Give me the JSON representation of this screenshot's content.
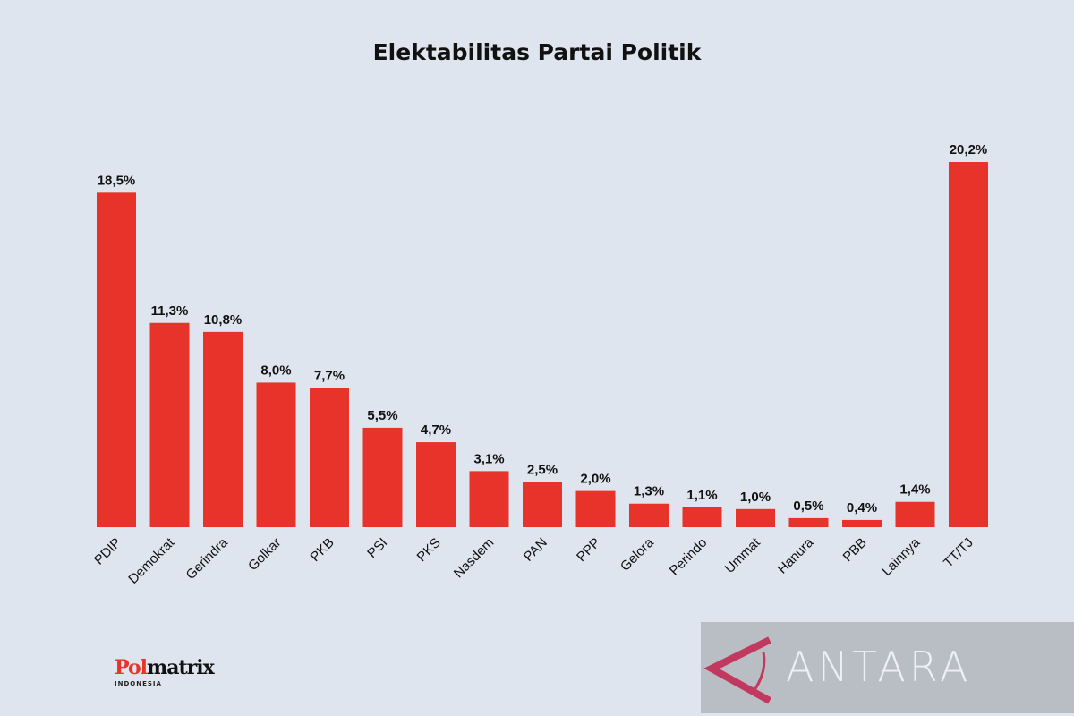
{
  "chart_data": {
    "type": "bar",
    "title": "Elektabilitas Partai Politik",
    "categories": [
      "PDIP",
      "Demokrat",
      "Gerindra",
      "Golkar",
      "PKB",
      "PSI",
      "PKS",
      "Nasdem",
      "PAN",
      "PPP",
      "Gelora",
      "Perindo",
      "Ummat",
      "Hanura",
      "PBB",
      "Lainnya",
      "TT/TJ"
    ],
    "values": [
      18.5,
      11.3,
      10.8,
      8.0,
      7.7,
      5.5,
      4.7,
      3.1,
      2.5,
      2.0,
      1.3,
      1.1,
      1.0,
      0.5,
      0.4,
      1.4,
      20.2
    ],
    "data_labels": [
      "18,5%",
      "11,3%",
      "10,8%",
      "8,0%",
      "7,7%",
      "5,5%",
      "4,7%",
      "3,1%",
      "2,5%",
      "2,0%",
      "1,3%",
      "1,1%",
      "1,0%",
      "0,5%",
      "0,4%",
      "1,4%",
      "20,2%"
    ],
    "xlabel": "",
    "ylabel": "",
    "ylim": [
      0,
      20.2
    ],
    "grid": false,
    "bar_color": "#e8332a"
  },
  "logo": {
    "text_red": "Pol",
    "text_black": "matrix",
    "sub": "INDONESIA"
  },
  "watermark": {
    "text": "ANTARA",
    "accent": "#c2395f"
  }
}
